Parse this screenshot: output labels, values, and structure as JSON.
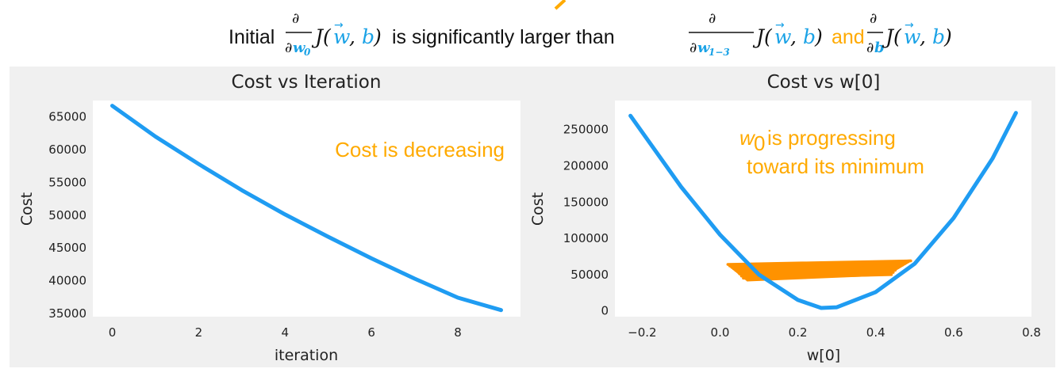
{
  "caption": {
    "prefix": "Initial",
    "middle": "is significantly larger than",
    "and": "and",
    "partial": "∂",
    "w0_sub": "w",
    "w0_idx": "0",
    "w13_idx": "1−3",
    "b_sym": "b",
    "J_open": "J(",
    "w_vec": "w",
    "comma": ", ",
    "close": ")"
  },
  "colors": {
    "line": "#1f9cf2",
    "orange": "#ff9200",
    "annotation": "#ffaa00",
    "blue_math": "#1aa2e6",
    "panel_bg": "#f0f0f0",
    "plot_bg": "#ffffff"
  },
  "chart_data": [
    {
      "type": "line",
      "title": "Cost vs Iteration",
      "xlabel": "iteration",
      "ylabel": "Cost",
      "xlim": [
        -0.45,
        9.45
      ],
      "ylim": [
        34500,
        67500
      ],
      "xticks": [
        0,
        2,
        4,
        6,
        8
      ],
      "yticks": [
        35000,
        40000,
        45000,
        50000,
        55000,
        60000,
        65000
      ],
      "grid": false,
      "annotation": "Cost is decreasing",
      "series": [
        {
          "x": [
            0,
            1,
            2,
            3,
            4,
            5,
            6,
            7,
            8,
            9
          ],
          "values": [
            66700,
            62000,
            57800,
            53800,
            50100,
            46700,
            43400,
            40300,
            37400,
            35500
          ]
        }
      ]
    },
    {
      "type": "line",
      "title": "Cost vs w[0]",
      "xlabel": "w[0]",
      "ylabel": "Cost",
      "xlim": [
        -0.27,
        0.8
      ],
      "ylim": [
        -8000,
        290000
      ],
      "xticks": [
        -0.2,
        0.0,
        0.2,
        0.4,
        0.6,
        0.8
      ],
      "yticks": [
        0,
        50000,
        100000,
        150000,
        200000,
        250000
      ],
      "grid": false,
      "annotation_line1_symbol": "w",
      "annotation_line1_sub": "0",
      "annotation_line1_rest": "is  progressing",
      "annotation_line2": "toward its minimum",
      "cost_curve": {
        "x": [
          -0.23,
          -0.1,
          0.0,
          0.1,
          0.2,
          0.26,
          0.3,
          0.4,
          0.5,
          0.6,
          0.7,
          0.76
        ],
        "values": [
          269000,
          171000,
          105000,
          50000,
          15000,
          4000,
          5000,
          26000,
          65000,
          128000,
          210000,
          273000
        ]
      },
      "gradient_path": {
        "x": [
          0.02,
          0.49,
          0.025,
          0.48,
          0.03,
          0.47,
          0.035,
          0.465,
          0.04,
          0.46,
          0.045,
          0.455,
          0.05,
          0.45,
          0.055,
          0.445,
          0.06,
          0.44
        ],
        "values": [
          64000,
          69000,
          62000,
          67000,
          60000,
          65000,
          58000,
          63000,
          56000,
          61000,
          54000,
          59000,
          51000,
          56000,
          48000,
          53000,
          45000,
          50000
        ]
      }
    }
  ]
}
